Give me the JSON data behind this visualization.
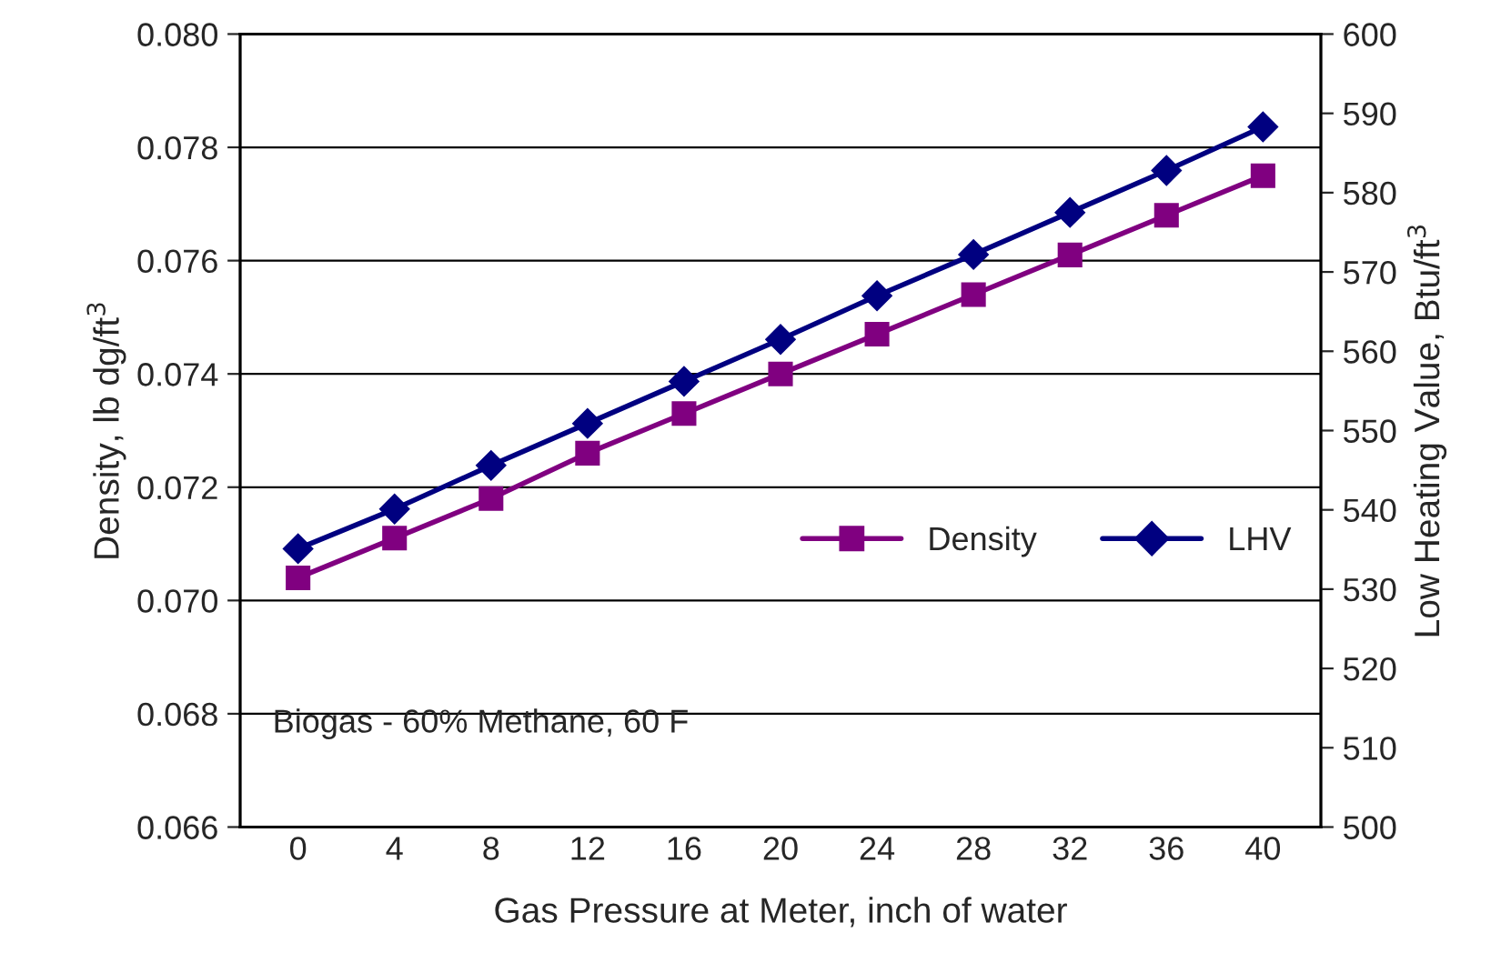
{
  "chart_data": {
    "type": "line",
    "categories": [
      "0",
      "4",
      "8",
      "12",
      "16",
      "20",
      "24",
      "28",
      "32",
      "36",
      "40"
    ],
    "xlabel": "Gas Pressure at Meter, inch of water",
    "ylabel": "Density, lb dg/ft$^{3}$",
    "y2label": "Low Heating Value, Btu/ft$^{3}$",
    "series": [
      {
        "name": "Density",
        "color": "#800080",
        "marker": "square",
        "values": [
          0.0704,
          0.0711,
          0.0718,
          0.0726,
          0.0733,
          0.074,
          0.0747,
          0.0754,
          0.0761,
          0.0768,
          0.0775
        ]
      },
      {
        "name": "LHV",
        "color": "#000080",
        "marker": "diamond",
        "axis": "y2",
        "values": [
          535.1,
          540.1,
          545.6,
          550.9,
          556.2,
          561.5,
          567.0,
          572.2,
          577.5,
          582.8,
          588.3
        ]
      }
    ],
    "ylim": [
      0.066,
      0.08
    ],
    "yticks": [
      {
        "value": 0.066,
        "label": "0.066"
      },
      {
        "value": 0.068,
        "label": "0.068"
      },
      {
        "value": 0.07,
        "label": "0.070"
      },
      {
        "value": 0.072,
        "label": "0.072"
      },
      {
        "value": 0.074,
        "label": "0.074"
      },
      {
        "value": 0.076,
        "label": "0.076"
      },
      {
        "value": 0.078,
        "label": "0.078"
      },
      {
        "value": 0.08,
        "label": "0.080"
      }
    ],
    "y2lim": [
      500,
      600
    ],
    "y2ticks": [
      500,
      510,
      520,
      530,
      540,
      550,
      560,
      570,
      580,
      590,
      600
    ],
    "grid": "y",
    "legend": "center right",
    "line_style": "solid",
    "annotations": [
      "Biogas - 60% Methane, 60 F"
    ]
  }
}
